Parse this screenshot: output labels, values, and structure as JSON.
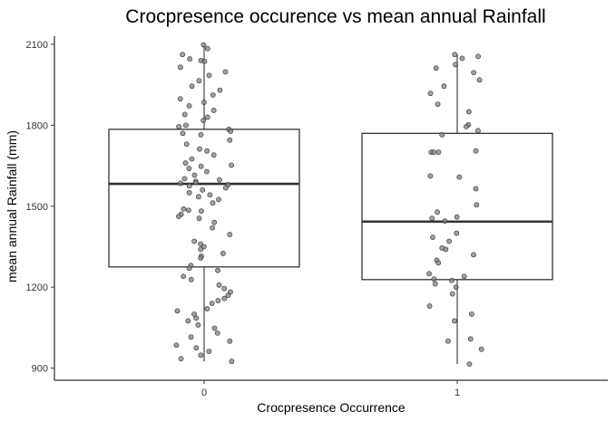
{
  "chart_data": {
    "type": "box",
    "title": "Crocpresence occurence vs mean annual Rainfall",
    "xlabel": "Crocpresence Occurrence",
    "ylabel": "mean annual Rainfall (mm)",
    "categories": [
      "0",
      "1"
    ],
    "ylim": [
      855,
      2130
    ],
    "yticks": [
      900,
      1200,
      1500,
      1800,
      2100
    ],
    "grid": false,
    "legend": "none",
    "colors": {
      "box_stroke": "#222222",
      "median": "#333333",
      "point_fill": "#808080",
      "point_stroke": "#333333"
    },
    "boxes": [
      {
        "category": "0",
        "min": 925,
        "q1": 1275,
        "median": 1583,
        "q3": 1785,
        "max": 2100
      },
      {
        "category": "1",
        "min": 915,
        "q1": 1228,
        "median": 1443,
        "q3": 1770,
        "max": 2065
      }
    ],
    "points": [
      {
        "category": "0",
        "values": [
          2098,
          2084,
          2062,
          2046,
          2040,
          2037,
          2015,
          1998,
          1985,
          1965,
          1945,
          1930,
          1912,
          1898,
          1885,
          1872,
          1855,
          1840,
          1830,
          1818,
          1800,
          1795,
          1785,
          1778,
          1770,
          1765,
          1745,
          1730,
          1712,
          1705,
          1690,
          1675,
          1660,
          1652,
          1648,
          1640,
          1628,
          1615,
          1602,
          1598,
          1592,
          1588,
          1585,
          1580,
          1575,
          1568,
          1560,
          1550,
          1542,
          1535,
          1525,
          1512,
          1490,
          1485,
          1482,
          1470,
          1462,
          1455,
          1440,
          1420,
          1395,
          1370,
          1360,
          1350,
          1340,
          1325,
          1315,
          1308,
          1280,
          1270,
          1262,
          1240,
          1228,
          1208,
          1195,
          1182,
          1170,
          1158,
          1150,
          1140,
          1120,
          1112,
          1100,
          1085,
          1075,
          1060,
          1048,
          1030,
          1015,
          1000,
          985,
          975,
          962,
          948,
          935,
          925
        ]
      },
      {
        "category": "1",
        "values": [
          2062,
          2055,
          2048,
          2025,
          2012,
          1995,
          1968,
          1945,
          1918,
          1878,
          1850,
          1802,
          1795,
          1780,
          1765,
          1705,
          1700,
          1700,
          1700,
          1612,
          1608,
          1565,
          1505,
          1478,
          1460,
          1455,
          1445,
          1400,
          1385,
          1370,
          1345,
          1340,
          1320,
          1300,
          1290,
          1250,
          1240,
          1230,
          1225,
          1212,
          1200,
          1175,
          1130,
          1100,
          1075,
          1008,
          1000,
          970,
          915
        ]
      }
    ]
  }
}
